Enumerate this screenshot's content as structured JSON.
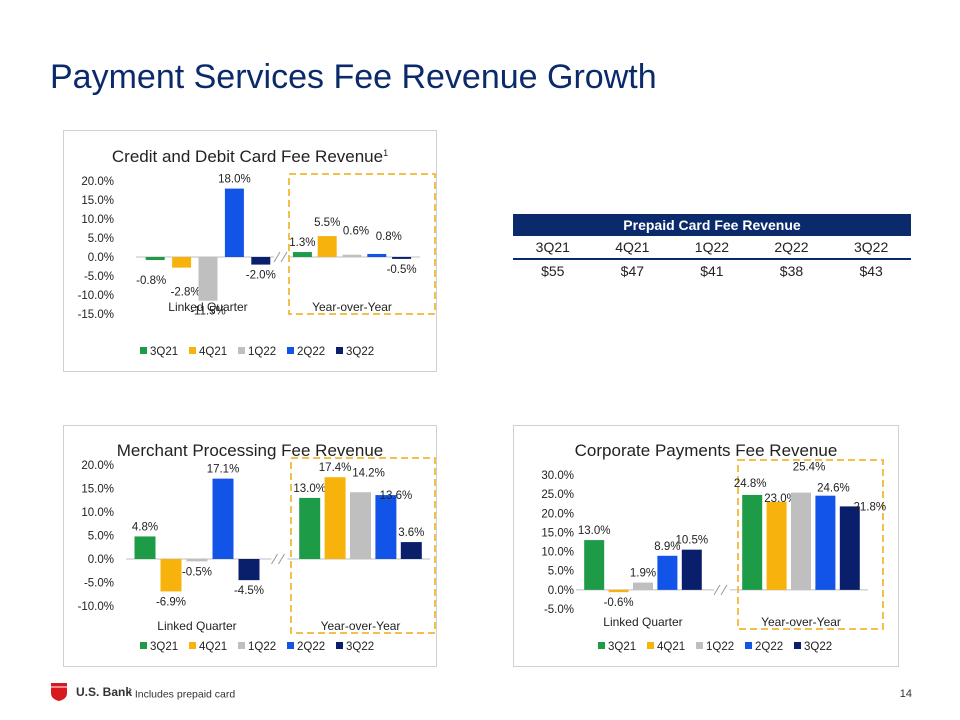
{
  "title": "Payment Services Fee Revenue Growth",
  "colors": {
    "title": "#0b2a6b",
    "3Q21": "#1e9b47",
    "4Q21": "#f7b30b",
    "1Q22": "#bfbfbf",
    "2Q22": "#1253e8",
    "3Q22": "#0a1f6b",
    "highlight_box": "#f3c04c"
  },
  "prepaid_table": {
    "title": "Prepaid Card Fee Revenue",
    "periods": [
      "3Q21",
      "4Q21",
      "1Q22",
      "2Q22",
      "3Q22"
    ],
    "values": [
      "$55",
      "$47",
      "$41",
      "$38",
      "$43"
    ]
  },
  "chart_data": [
    {
      "type": "bar",
      "title": "Credit and Debit Card Fee Revenue",
      "title_sup": "1",
      "categories": [
        "Linked Quarter",
        "Year-over-Year"
      ],
      "series": [
        {
          "name": "3Q21",
          "values": [
            -0.8,
            1.3
          ]
        },
        {
          "name": "4Q21",
          "values": [
            -2.8,
            5.5
          ]
        },
        {
          "name": "1Q22",
          "values": [
            -11.5,
            0.6
          ]
        },
        {
          "name": "2Q22",
          "values": [
            18.0,
            0.8
          ]
        },
        {
          "name": "3Q22",
          "values": [
            -2.0,
            -0.5
          ]
        }
      ],
      "ylim": [
        -15,
        20
      ],
      "yticks": [
        "-15.0%",
        "-10.0%",
        "-5.0%",
        "0.0%",
        "5.0%",
        "10.0%",
        "15.0%",
        "20.0%"
      ],
      "legend": [
        "3Q21",
        "4Q21",
        "1Q22",
        "2Q22",
        "3Q22"
      ],
      "legend_position": "bottom",
      "grid": false
    },
    {
      "type": "bar",
      "title": "Merchant Processing Fee Revenue",
      "title_sup": "",
      "categories": [
        "Linked Quarter",
        "Year-over-Year"
      ],
      "series": [
        {
          "name": "3Q21",
          "values": [
            4.8,
            13.0
          ]
        },
        {
          "name": "4Q21",
          "values": [
            -6.9,
            17.4
          ]
        },
        {
          "name": "1Q22",
          "values": [
            -0.5,
            14.2
          ]
        },
        {
          "name": "2Q22",
          "values": [
            17.1,
            13.6
          ]
        },
        {
          "name": "3Q22",
          "values": [
            -4.5,
            3.6
          ]
        }
      ],
      "ylim": [
        -10,
        20
      ],
      "yticks": [
        "-10.0%",
        "-5.0%",
        "0.0%",
        "5.0%",
        "10.0%",
        "15.0%",
        "20.0%"
      ],
      "legend": [
        "3Q21",
        "4Q21",
        "1Q22",
        "2Q22",
        "3Q22"
      ],
      "legend_position": "bottom",
      "grid": false
    },
    {
      "type": "bar",
      "title": "Corporate Payments Fee Revenue",
      "title_sup": "",
      "categories": [
        "Linked Quarter",
        "Year-over-Year"
      ],
      "series": [
        {
          "name": "3Q21",
          "values": [
            13.0,
            24.8
          ]
        },
        {
          "name": "4Q21",
          "values": [
            -0.6,
            23.0
          ]
        },
        {
          "name": "1Q22",
          "values": [
            1.9,
            25.4
          ]
        },
        {
          "name": "2Q22",
          "values": [
            8.9,
            24.6
          ]
        },
        {
          "name": "3Q22",
          "values": [
            10.5,
            21.8
          ]
        }
      ],
      "ylim": [
        -5,
        30
      ],
      "yticks": [
        "-5.0%",
        "0.0%",
        "5.0%",
        "10.0%",
        "15.0%",
        "20.0%",
        "25.0%",
        "30.0%"
      ],
      "legend": [
        "3Q21",
        "4Q21",
        "1Q22",
        "2Q22",
        "3Q22"
      ],
      "legend_position": "bottom",
      "grid": false
    }
  ],
  "footer": {
    "logo_text": "U.S. Bank",
    "footnote_mark": "1",
    "footnote": "Includes prepaid card",
    "page_number": "14"
  }
}
